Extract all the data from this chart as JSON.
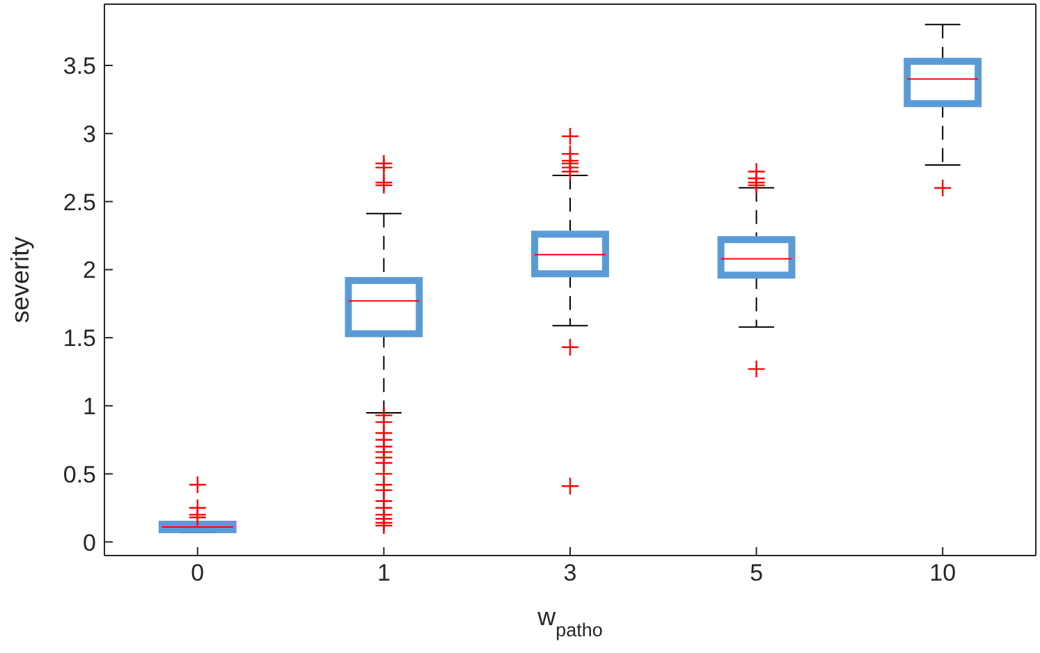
{
  "chart_data": {
    "type": "box",
    "xlabel": "w$_{patho}$",
    "ylabel": "severity",
    "categories": [
      "0",
      "1",
      "3",
      "5",
      "10"
    ],
    "ylim": [
      -0.1,
      3.95
    ],
    "yticks": [
      0,
      0.5,
      1,
      1.5,
      2,
      2.5,
      3,
      3.5
    ],
    "marker": "cross",
    "series": [
      {
        "color": "#5b9bd5",
        "boxes": [
          {
            "low": 0.07,
            "q1": 0.09,
            "median": 0.11,
            "q3": 0.13,
            "high": 0.15,
            "outliers": [
              0.42,
              0.25,
              0.2,
              0.18
            ]
          },
          {
            "low": 0.95,
            "q1": 1.53,
            "median": 1.77,
            "q3": 1.92,
            "high": 2.41,
            "outliers": [
              2.78,
              2.75,
              2.64,
              2.62,
              0.93,
              0.88,
              0.8,
              0.75,
              0.7,
              0.66,
              0.62,
              0.58,
              0.5,
              0.42,
              0.38,
              0.3,
              0.25,
              0.2,
              0.17,
              0.14,
              0.12
            ]
          },
          {
            "low": 1.59,
            "q1": 1.97,
            "median": 2.11,
            "q3": 2.26,
            "high": 2.69,
            "outliers": [
              2.98,
              2.85,
              2.8,
              2.78,
              2.75,
              2.72,
              1.43,
              0.41
            ]
          },
          {
            "low": 1.58,
            "q1": 1.96,
            "median": 2.08,
            "q3": 2.22,
            "high": 2.6,
            "outliers": [
              2.72,
              2.67,
              2.64,
              2.62,
              1.27
            ]
          },
          {
            "low": 2.77,
            "q1": 3.22,
            "median": 3.4,
            "q3": 3.53,
            "high": 3.8,
            "outliers": [
              2.6
            ]
          }
        ]
      }
    ]
  }
}
